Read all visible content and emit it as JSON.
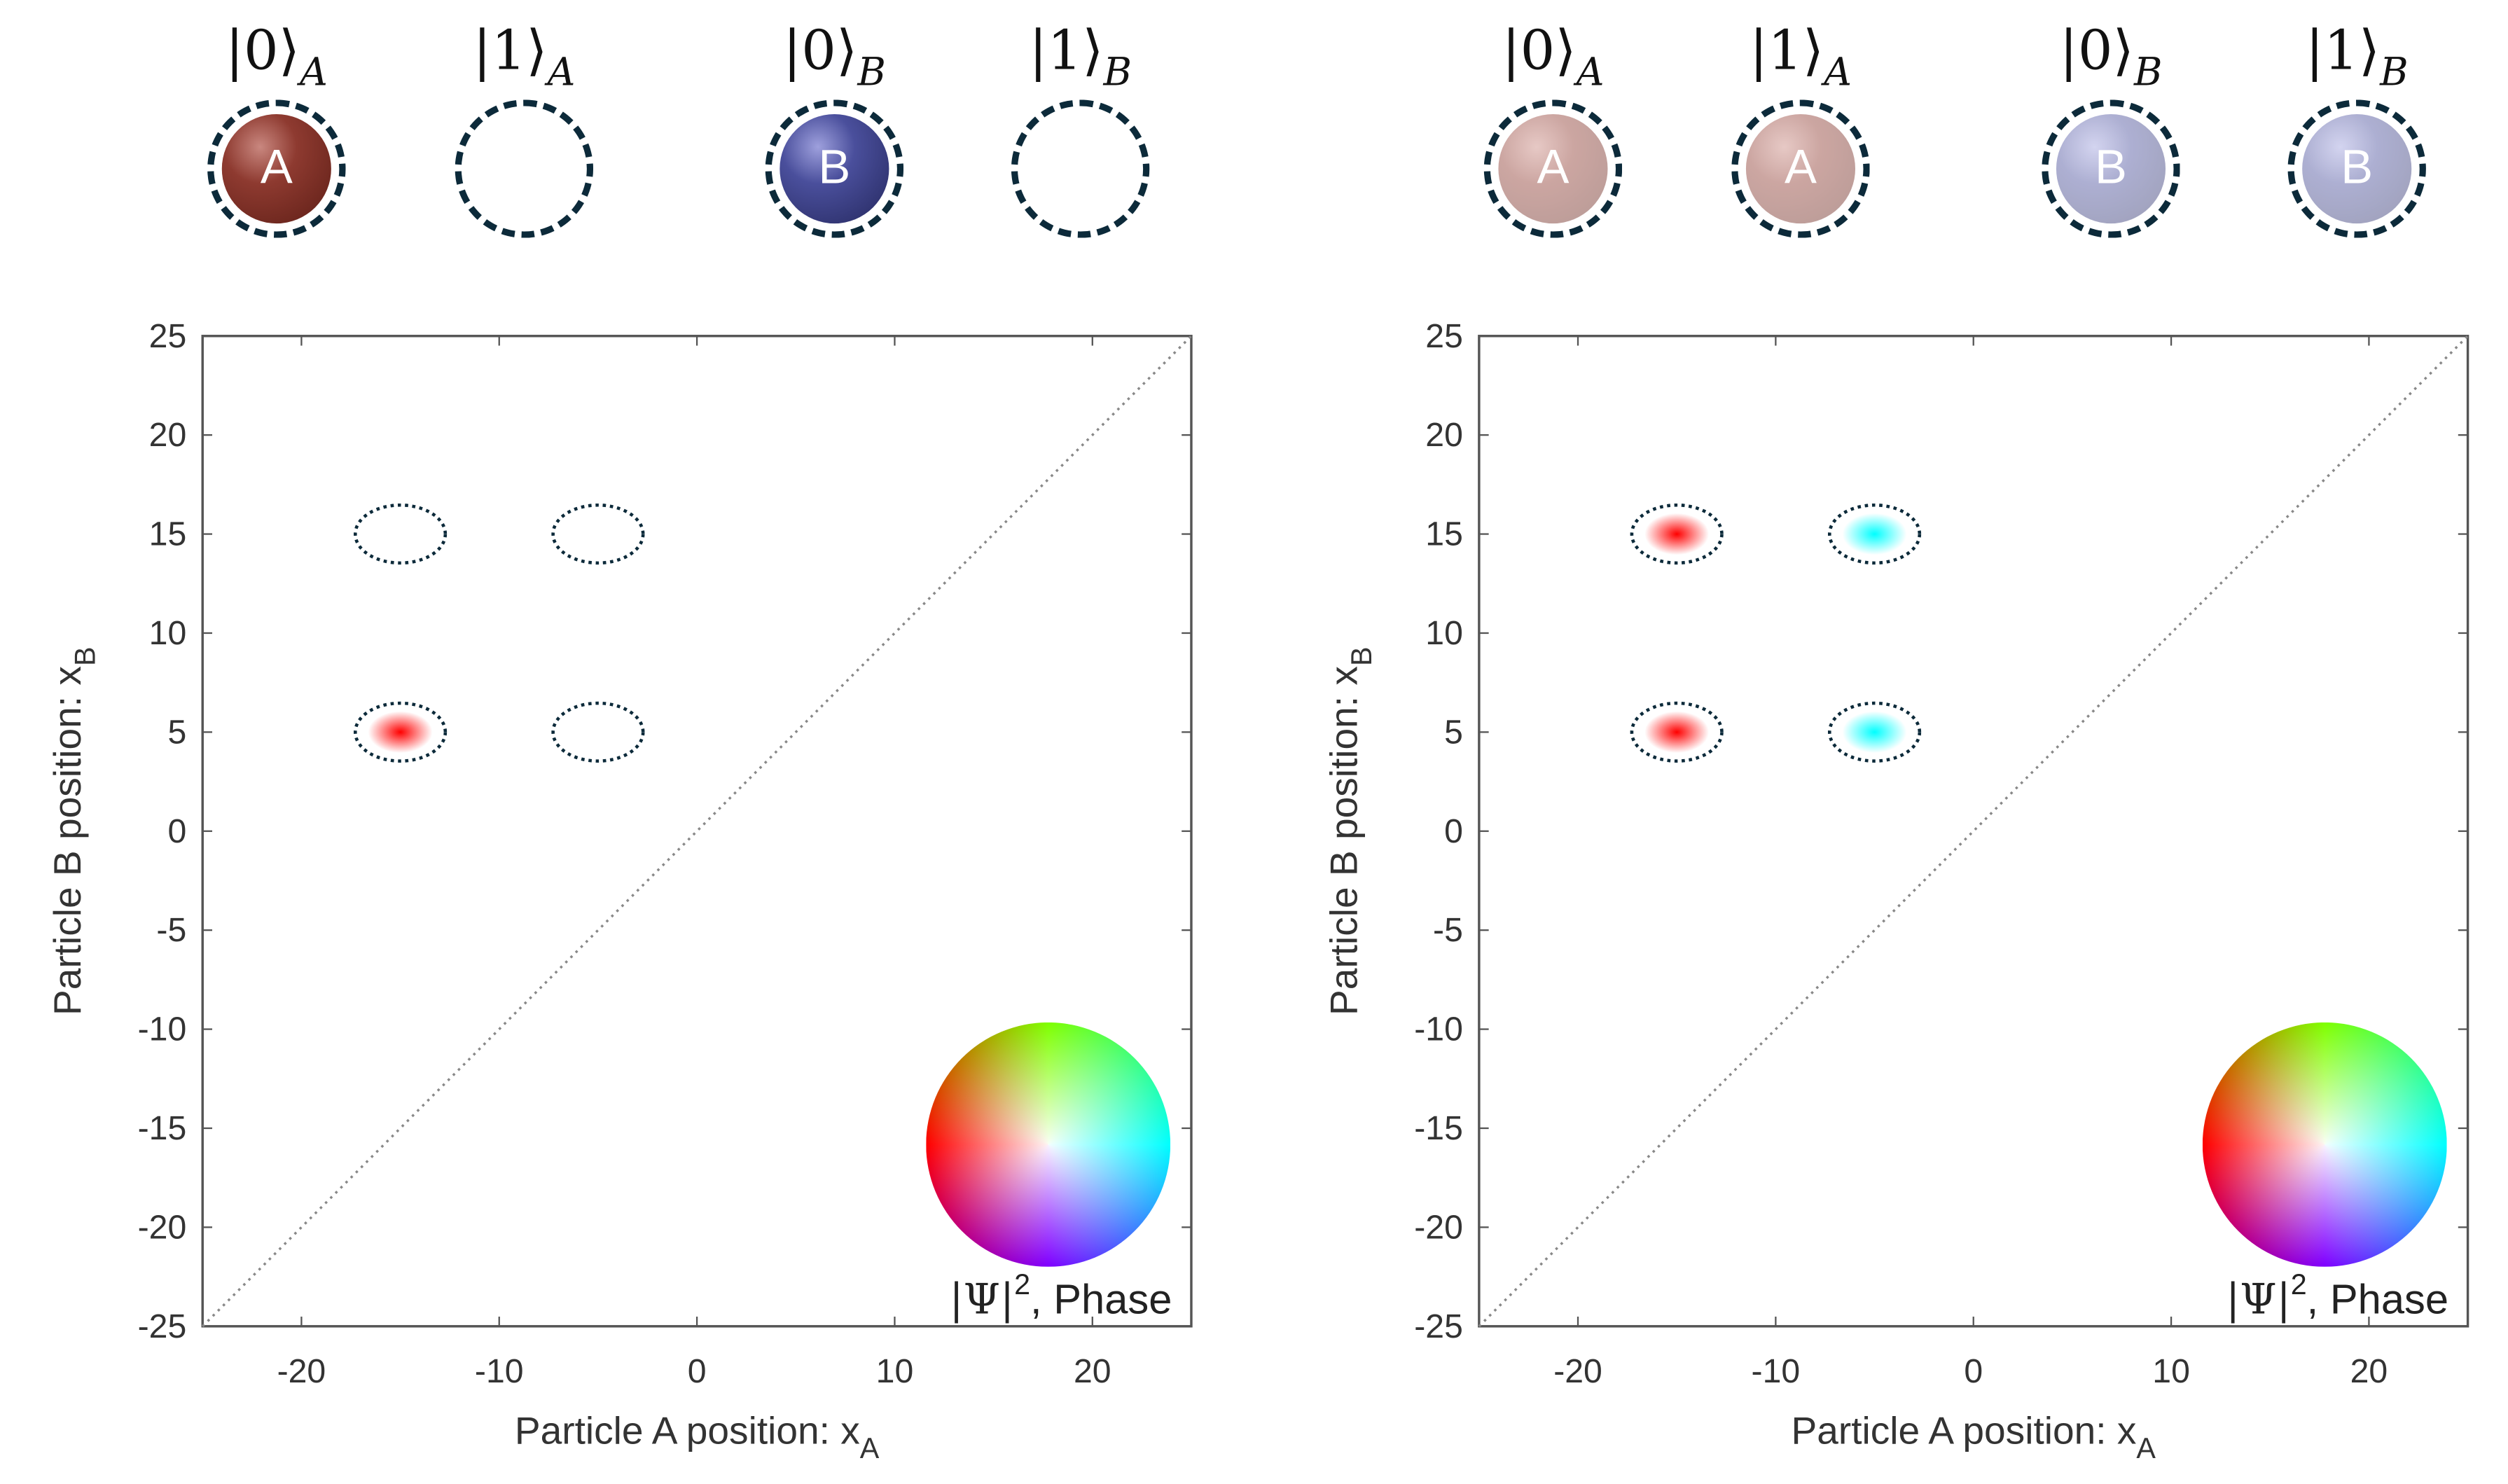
{
  "panels": [
    {
      "kets": [
        "|0⟩",
        "|1⟩",
        "|0⟩",
        "|1⟩"
      ],
      "ket_subs": [
        "A",
        "A",
        "B",
        "B"
      ],
      "balls": [
        {
          "label": "A",
          "filled": true,
          "faded": false
        },
        {
          "label": "",
          "filled": false,
          "faded": false
        },
        {
          "label": "B",
          "filled": true,
          "faded": false
        },
        {
          "label": "",
          "filled": false,
          "faded": false
        }
      ]
    },
    {
      "kets": [
        "|0⟩",
        "|1⟩",
        "|0⟩",
        "|1⟩"
      ],
      "ket_subs": [
        "A",
        "A",
        "B",
        "B"
      ],
      "balls": [
        {
          "label": "A",
          "filled": true,
          "faded": true
        },
        {
          "label": "A",
          "filled": true,
          "faded": true
        },
        {
          "label": "B",
          "filled": true,
          "faded": true
        },
        {
          "label": "B",
          "filled": true,
          "faded": true
        }
      ]
    }
  ],
  "chart_data": [
    {
      "type": "heatmap",
      "xlabel": "Particle A position: x",
      "xlabel_sub": "A",
      "ylabel": "Particle B position: x",
      "ylabel_sub": "B",
      "xlim": [
        -25,
        25
      ],
      "ylim": [
        -25,
        25
      ],
      "xticks": [
        -20,
        -10,
        0,
        10,
        20
      ],
      "yticks": [
        25,
        20,
        15,
        10,
        5,
        0,
        -5,
        -10,
        -15,
        -20,
        -25
      ],
      "diagonal": "dotted x=y line",
      "dotted_regions": [
        [
          -15,
          15
        ],
        [
          -5,
          15
        ],
        [
          -15,
          5
        ],
        [
          -5,
          5
        ]
      ],
      "peaks": [
        {
          "x": -15,
          "y": 5,
          "color": "#ff0000"
        }
      ],
      "legend": {
        "label": "|Ψ|",
        "sup": "2",
        "suffix": ", Phase",
        "type": "phase color wheel",
        "placement": "bottom-right"
      }
    },
    {
      "type": "heatmap",
      "xlabel": "Particle A position: x",
      "xlabel_sub": "A",
      "ylabel": "Particle B position: x",
      "ylabel_sub": "B",
      "xlim": [
        -25,
        25
      ],
      "ylim": [
        -25,
        25
      ],
      "xticks": [
        -20,
        -10,
        0,
        10,
        20
      ],
      "yticks": [
        25,
        20,
        15,
        10,
        5,
        0,
        -5,
        -10,
        -15,
        -20,
        -25
      ],
      "diagonal": "dotted x=y line",
      "dotted_regions": [
        [
          -15,
          15
        ],
        [
          -5,
          15
        ],
        [
          -15,
          5
        ],
        [
          -5,
          5
        ]
      ],
      "peaks": [
        {
          "x": -15,
          "y": 15,
          "color": "#ff0000"
        },
        {
          "x": -5,
          "y": 15,
          "color": "#00ffff"
        },
        {
          "x": -15,
          "y": 5,
          "color": "#ff0000"
        },
        {
          "x": -5,
          "y": 5,
          "color": "#00ffff"
        }
      ],
      "legend": {
        "label": "|Ψ|",
        "sup": "2",
        "suffix": ", Phase",
        "type": "phase color wheel",
        "placement": "bottom-right"
      }
    }
  ]
}
